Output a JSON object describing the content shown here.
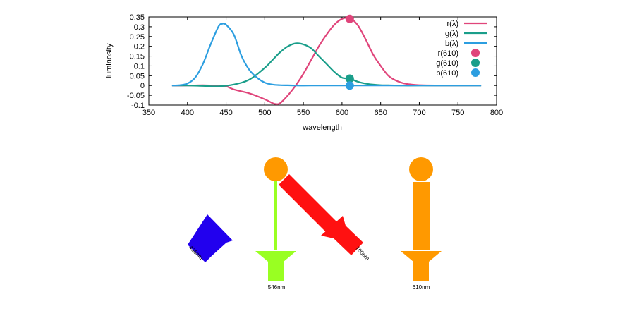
{
  "chart_data": {
    "type": "line",
    "title": "",
    "xlabel": "wavelength",
    "ylabel": "luminosity",
    "xlim": [
      350,
      800
    ],
    "ylim": [
      -0.1,
      0.35
    ],
    "x_ticks": [
      "350",
      "400",
      "450",
      "500",
      "550",
      "600",
      "650",
      "700",
      "750",
      "800"
    ],
    "y_ticks": [
      "0.35",
      "0.3",
      "0.25",
      "0.2",
      "0.15",
      "0.1",
      "0.05",
      "0",
      "-0.05",
      "-0.1"
    ],
    "grid": false,
    "legend_position": "top-right",
    "series": [
      {
        "name": "r(λ)",
        "color": "#e0457b",
        "x": [
          380,
          400,
          420,
          440,
          450,
          460,
          480,
          500,
          510,
          515,
          520,
          530,
          540,
          550,
          560,
          570,
          580,
          590,
          600,
          610,
          620,
          630,
          640,
          650,
          660,
          670,
          680,
          690,
          700,
          720,
          780
        ],
        "y": [
          0,
          0,
          0.001,
          -0.002,
          -0.004,
          -0.02,
          -0.04,
          -0.07,
          -0.09,
          -0.095,
          -0.09,
          -0.05,
          0,
          0.06,
          0.13,
          0.2,
          0.26,
          0.31,
          0.34,
          0.343,
          0.31,
          0.24,
          0.16,
          0.1,
          0.05,
          0.025,
          0.011,
          0.005,
          0.002,
          0.0005,
          0
        ]
      },
      {
        "name": "g(λ)",
        "color": "#1a9e8a",
        "x": [
          380,
          400,
          420,
          440,
          460,
          480,
          500,
          510,
          520,
          530,
          540,
          550,
          560,
          570,
          580,
          590,
          600,
          610,
          620,
          630,
          640,
          650,
          660,
          680,
          700,
          780
        ],
        "y": [
          0,
          0,
          -0.002,
          -0.004,
          0.005,
          0.03,
          0.09,
          0.13,
          0.17,
          0.2,
          0.215,
          0.21,
          0.19,
          0.15,
          0.11,
          0.07,
          0.04,
          0.035,
          0.02,
          0.01,
          0.005,
          0.002,
          0.001,
          0,
          0,
          0
        ]
      },
      {
        "name": "b(λ)",
        "color": "#2c9ee0",
        "x": [
          380,
          390,
          400,
          410,
          420,
          430,
          440,
          445,
          450,
          460,
          470,
          480,
          490,
          500,
          510,
          520,
          530,
          540,
          560,
          600,
          700,
          780
        ],
        "y": [
          0,
          0.002,
          0.01,
          0.04,
          0.11,
          0.21,
          0.3,
          0.315,
          0.31,
          0.26,
          0.15,
          0.08,
          0.04,
          0.015,
          0.005,
          0.002,
          0.001,
          0,
          0,
          0,
          0,
          0
        ]
      }
    ],
    "points": [
      {
        "name": "r(610)",
        "x": 610,
        "y": 0.34,
        "color": "#e0457b"
      },
      {
        "name": "g(610)",
        "x": 610,
        "y": 0.035,
        "color": "#1a9e8a"
      },
      {
        "name": "b(610)",
        "x": 610,
        "y": 0.0,
        "color": "#2c9ee0"
      }
    ]
  },
  "diagram": {
    "lamps": [
      {
        "label": "436nm",
        "color": "#2200ee"
      },
      {
        "label": "546nm",
        "color": "#99ff22"
      },
      {
        "label": "700nm",
        "color": "#ff1111"
      },
      {
        "label": "610nm",
        "color": "#ff9900"
      }
    ],
    "observer_color": "#ff9900"
  }
}
